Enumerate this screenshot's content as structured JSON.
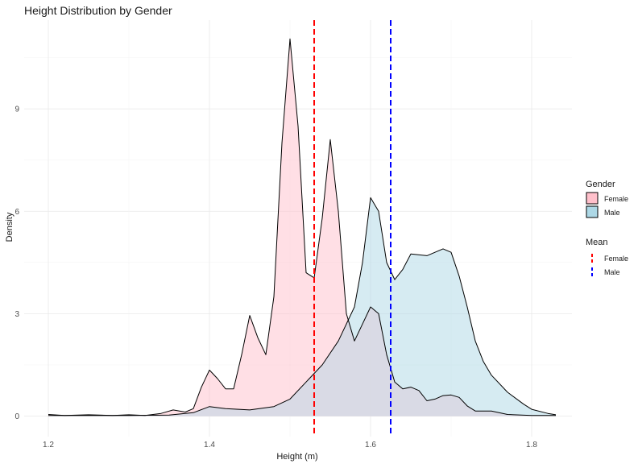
{
  "chart_data": {
    "type": "area",
    "title": "Height Distribution by Gender",
    "xlabel": "Height (m)",
    "ylabel": "Density",
    "xlim": [
      1.17,
      1.85
    ],
    "ylim": [
      -0.6,
      11.6
    ],
    "x_ticks": [
      {
        "value": 1.2,
        "label": "1.2"
      },
      {
        "value": 1.4,
        "label": "1.4"
      },
      {
        "value": 1.6,
        "label": "1.6"
      },
      {
        "value": 1.8,
        "label": "1.8"
      }
    ],
    "y_ticks": [
      {
        "value": 0,
        "label": "0"
      },
      {
        "value": 3,
        "label": "3"
      },
      {
        "value": 6,
        "label": "6"
      },
      {
        "value": 9,
        "label": "9"
      }
    ],
    "grid": true,
    "legend_position": "right",
    "series": [
      {
        "name": "Female",
        "fill": "#ffc0cb",
        "points": [
          [
            1.2,
            0.05
          ],
          [
            1.22,
            0.02
          ],
          [
            1.25,
            0.04
          ],
          [
            1.28,
            0.02
          ],
          [
            1.3,
            0.04
          ],
          [
            1.32,
            0.02
          ],
          [
            1.34,
            0.08
          ],
          [
            1.355,
            0.18
          ],
          [
            1.37,
            0.12
          ],
          [
            1.38,
            0.22
          ],
          [
            1.39,
            0.85
          ],
          [
            1.4,
            1.35
          ],
          [
            1.41,
            1.1
          ],
          [
            1.42,
            0.8
          ],
          [
            1.43,
            0.8
          ],
          [
            1.44,
            1.8
          ],
          [
            1.45,
            2.95
          ],
          [
            1.46,
            2.3
          ],
          [
            1.47,
            1.8
          ],
          [
            1.48,
            3.5
          ],
          [
            1.49,
            8
          ],
          [
            1.5,
            11.05
          ],
          [
            1.51,
            8.5
          ],
          [
            1.52,
            4.2
          ],
          [
            1.53,
            4.05
          ],
          [
            1.54,
            5.8
          ],
          [
            1.55,
            8.1
          ],
          [
            1.56,
            6
          ],
          [
            1.57,
            3
          ],
          [
            1.58,
            2.2
          ],
          [
            1.59,
            2.7
          ],
          [
            1.6,
            3.2
          ],
          [
            1.61,
            3
          ],
          [
            1.62,
            1.8
          ],
          [
            1.63,
            1
          ],
          [
            1.64,
            0.8
          ],
          [
            1.65,
            0.85
          ],
          [
            1.66,
            0.75
          ],
          [
            1.67,
            0.45
          ],
          [
            1.68,
            0.5
          ],
          [
            1.69,
            0.6
          ],
          [
            1.7,
            0.62
          ],
          [
            1.71,
            0.55
          ],
          [
            1.72,
            0.3
          ],
          [
            1.73,
            0.15
          ],
          [
            1.75,
            0.15
          ],
          [
            1.77,
            0.05
          ],
          [
            1.8,
            0.02
          ],
          [
            1.83,
            0.02
          ]
        ]
      },
      {
        "name": "Male",
        "fill": "#add8e6",
        "points": [
          [
            1.2,
            0.02
          ],
          [
            1.25,
            0.02
          ],
          [
            1.3,
            0.02
          ],
          [
            1.35,
            0.03
          ],
          [
            1.38,
            0.1
          ],
          [
            1.4,
            0.28
          ],
          [
            1.42,
            0.22
          ],
          [
            1.45,
            0.18
          ],
          [
            1.48,
            0.28
          ],
          [
            1.5,
            0.5
          ],
          [
            1.52,
            1
          ],
          [
            1.54,
            1.5
          ],
          [
            1.56,
            2.2
          ],
          [
            1.58,
            3.2
          ],
          [
            1.59,
            4.5
          ],
          [
            1.6,
            6.4
          ],
          [
            1.61,
            6
          ],
          [
            1.62,
            4.5
          ],
          [
            1.63,
            4
          ],
          [
            1.64,
            4.3
          ],
          [
            1.65,
            4.75
          ],
          [
            1.67,
            4.7
          ],
          [
            1.69,
            4.9
          ],
          [
            1.7,
            4.8
          ],
          [
            1.71,
            4.1
          ],
          [
            1.72,
            3.2
          ],
          [
            1.73,
            2.2
          ],
          [
            1.74,
            1.6
          ],
          [
            1.75,
            1.2
          ],
          [
            1.77,
            0.7
          ],
          [
            1.79,
            0.35
          ],
          [
            1.8,
            0.2
          ],
          [
            1.82,
            0.08
          ],
          [
            1.83,
            0.04
          ]
        ]
      }
    ],
    "overlap_fill": "#d9d9e4",
    "mean_lines": [
      {
        "name": "Female",
        "value": 1.53,
        "color": "#ff0000"
      },
      {
        "name": "Male",
        "value": 1.625,
        "color": "#0000ff"
      }
    ],
    "legends": [
      {
        "title": "Gender",
        "entries": [
          {
            "label": "Female",
            "fill": "#ffc0cb"
          },
          {
            "label": "Male",
            "fill": "#add8e6"
          }
        ]
      },
      {
        "title": "Mean",
        "entries": [
          {
            "label": "Female",
            "color": "#ff0000"
          },
          {
            "label": "Male",
            "color": "#0000ff"
          }
        ]
      }
    ]
  }
}
